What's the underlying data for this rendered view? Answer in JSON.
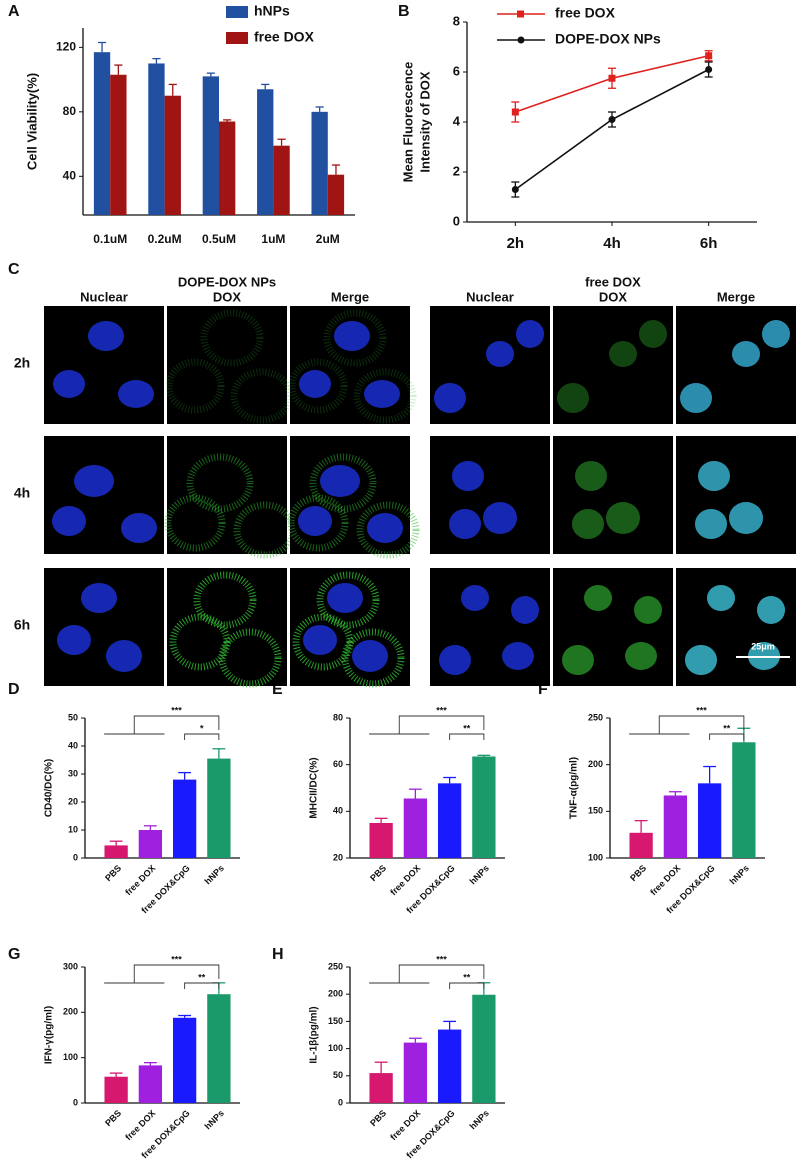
{
  "chart_data": [
    {
      "type": "bar",
      "letter": "A",
      "y_label": "Cell Viability(%)",
      "categories": [
        "0.1uM",
        "0.2uM",
        "0.5uM",
        "1uM",
        "2uM"
      ],
      "series": [
        {
          "name": "hNPs",
          "color": "#2150a0",
          "values": [
            117,
            110,
            102,
            94,
            80
          ],
          "errors": [
            6,
            3,
            2,
            3,
            3
          ]
        },
        {
          "name": "free DOX",
          "color": "#a01414",
          "values": [
            103,
            90,
            74,
            59,
            41
          ],
          "errors": [
            6,
            7,
            1,
            4,
            6
          ]
        }
      ],
      "ylim": [
        16,
        132
      ],
      "yticks": [
        40,
        80,
        120
      ],
      "legend": "top-right"
    },
    {
      "type": "line",
      "letter": "B",
      "y_label": [
        "Mean Fluorescence",
        "Intensity of DOX"
      ],
      "categories": [
        "2h",
        "4h",
        "6h"
      ],
      "series": [
        {
          "name": "free DOX",
          "color": "#e0201c",
          "marker": "square",
          "values": [
            4.4,
            5.75,
            6.65
          ],
          "errors": [
            0.4,
            0.4,
            0.2
          ]
        },
        {
          "name": "DOPE-DOX NPs",
          "color": "#111111",
          "marker": "circle",
          "values": [
            1.3,
            4.1,
            6.1
          ],
          "errors": [
            0.3,
            0.3,
            0.3
          ]
        }
      ],
      "ylim": [
        0,
        8
      ],
      "yticks": [
        0,
        2,
        4,
        6,
        8
      ],
      "legend": "top-right"
    },
    {
      "type": "bar",
      "letter": "D",
      "y_label": "CD40/DC(%)",
      "categories": [
        "PBS",
        "free DOX",
        "free DOX&CpG",
        "hNPs"
      ],
      "values": [
        4.5,
        10,
        28,
        35.5
      ],
      "errors": [
        1.5,
        1.5,
        2.5,
        3.5
      ],
      "colors": [
        "#d6186f",
        "#a020e0",
        "#1a1aff",
        "#1a9a6a"
      ],
      "ylim": [
        0,
        50
      ],
      "yticks": [
        0,
        10,
        20,
        30,
        40,
        50
      ],
      "annotations": [
        "***",
        "*"
      ]
    },
    {
      "type": "bar",
      "letter": "E",
      "y_label": "MHCII/DC(%)",
      "categories": [
        "PBS",
        "free DOX",
        "free DOX&CpG",
        "hNPs"
      ],
      "values": [
        35,
        45.5,
        52,
        63.5
      ],
      "errors": [
        2,
        4,
        2.5,
        0.5
      ],
      "colors": [
        "#d6186f",
        "#a020e0",
        "#1a1aff",
        "#1a9a6a"
      ],
      "ylim": [
        20,
        80
      ],
      "yticks": [
        20,
        40,
        60,
        80
      ],
      "annotations": [
        "***",
        "**"
      ]
    },
    {
      "type": "bar",
      "letter": "F",
      "y_label": "TNF-α(pg/ml)",
      "categories": [
        "PBS",
        "free DOX",
        "free DOX&CpG",
        "hNPs"
      ],
      "values": [
        127,
        167,
        180,
        224
      ],
      "errors": [
        13,
        4,
        18,
        15
      ],
      "colors": [
        "#d6186f",
        "#a020e0",
        "#1a1aff",
        "#1a9a6a"
      ],
      "ylim": [
        100,
        250
      ],
      "yticks": [
        100,
        150,
        200,
        250
      ],
      "annotations": [
        "***",
        "**"
      ]
    },
    {
      "type": "bar",
      "letter": "G",
      "y_label": "IFN-γ(pg/ml)",
      "categories": [
        "PBS",
        "free DOX",
        "free DOX&CpG",
        "hNPs"
      ],
      "values": [
        58,
        83,
        188,
        240
      ],
      "errors": [
        8,
        6,
        5,
        25
      ],
      "colors": [
        "#d6186f",
        "#a020e0",
        "#1a1aff",
        "#1a9a6a"
      ],
      "ylim": [
        0,
        300
      ],
      "yticks": [
        0,
        100,
        200,
        300
      ],
      "annotations": [
        "***",
        "**"
      ]
    },
    {
      "type": "bar",
      "letter": "H",
      "y_label": "IL-1β(pg/ml)",
      "categories": [
        "PBS",
        "free DOX",
        "free DOX&CpG",
        "hNPs"
      ],
      "values": [
        55,
        111,
        135,
        199
      ],
      "errors": [
        20,
        8,
        15,
        22
      ],
      "colors": [
        "#d6186f",
        "#a020e0",
        "#1a1aff",
        "#1a9a6a"
      ],
      "ylim": [
        0,
        250
      ],
      "yticks": [
        0,
        50,
        100,
        150,
        200,
        250
      ],
      "annotations": [
        "***",
        "**"
      ]
    }
  ],
  "microscopy": {
    "letter": "C",
    "groups": [
      {
        "name": "DOPE-DOX NPs",
        "columns": [
          "Nuclear",
          "DOX",
          "Merge"
        ]
      },
      {
        "name": "free DOX",
        "columns": [
          "Nuclear",
          "DOX",
          "Merge"
        ]
      }
    ],
    "rows": [
      "2h",
      "4h",
      "6h"
    ],
    "scale_bar": "25μm"
  }
}
